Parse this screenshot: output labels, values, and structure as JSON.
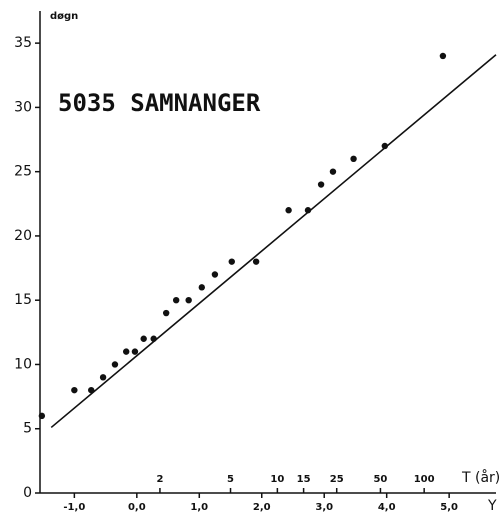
{
  "chart_data": {
    "type": "scatter",
    "title": "5035 SAMNANGER",
    "y_label": "døgn",
    "x_label": "Y",
    "x2_label": "T (år)",
    "color": "#111111",
    "x": [
      -1.52,
      -1.0,
      -0.73,
      -0.54,
      -0.35,
      -0.17,
      -0.03,
      0.11,
      0.27,
      0.47,
      0.63,
      0.83,
      1.04,
      1.25,
      1.52,
      1.91,
      2.43,
      2.74,
      2.95,
      3.14,
      3.47,
      3.97,
      4.9
    ],
    "values": [
      6,
      8,
      8,
      9,
      10,
      11,
      11,
      12,
      12,
      14,
      15,
      15,
      16,
      17,
      18,
      18,
      22,
      22,
      24,
      25,
      26,
      27,
      34
    ],
    "fit": {
      "x": [
        -1.37,
        5.75
      ],
      "y": [
        5.1,
        34.1
      ]
    },
    "xlim": [
      -1.55,
      5.75
    ],
    "ylim": [
      0,
      37.5
    ],
    "yticks": [
      0,
      5,
      10,
      15,
      20,
      25,
      30,
      35
    ],
    "xticks": [
      {
        "value": -1,
        "label": "-1,0"
      },
      {
        "value": 0,
        "label": "0,0"
      },
      {
        "value": 1,
        "label": "1,0"
      },
      {
        "value": 2,
        "label": "2,0"
      },
      {
        "value": 3,
        "label": "3,0"
      },
      {
        "value": 4,
        "label": "4,0"
      },
      {
        "value": 5,
        "label": "5,0"
      }
    ],
    "x2ticks": [
      {
        "value": 0.37,
        "label": "2"
      },
      {
        "value": 1.5,
        "label": "5"
      },
      {
        "value": 2.25,
        "label": "10"
      },
      {
        "value": 2.67,
        "label": "15"
      },
      {
        "value": 3.2,
        "label": "25"
      },
      {
        "value": 3.9,
        "label": "50"
      },
      {
        "value": 4.6,
        "label": "100"
      }
    ]
  }
}
